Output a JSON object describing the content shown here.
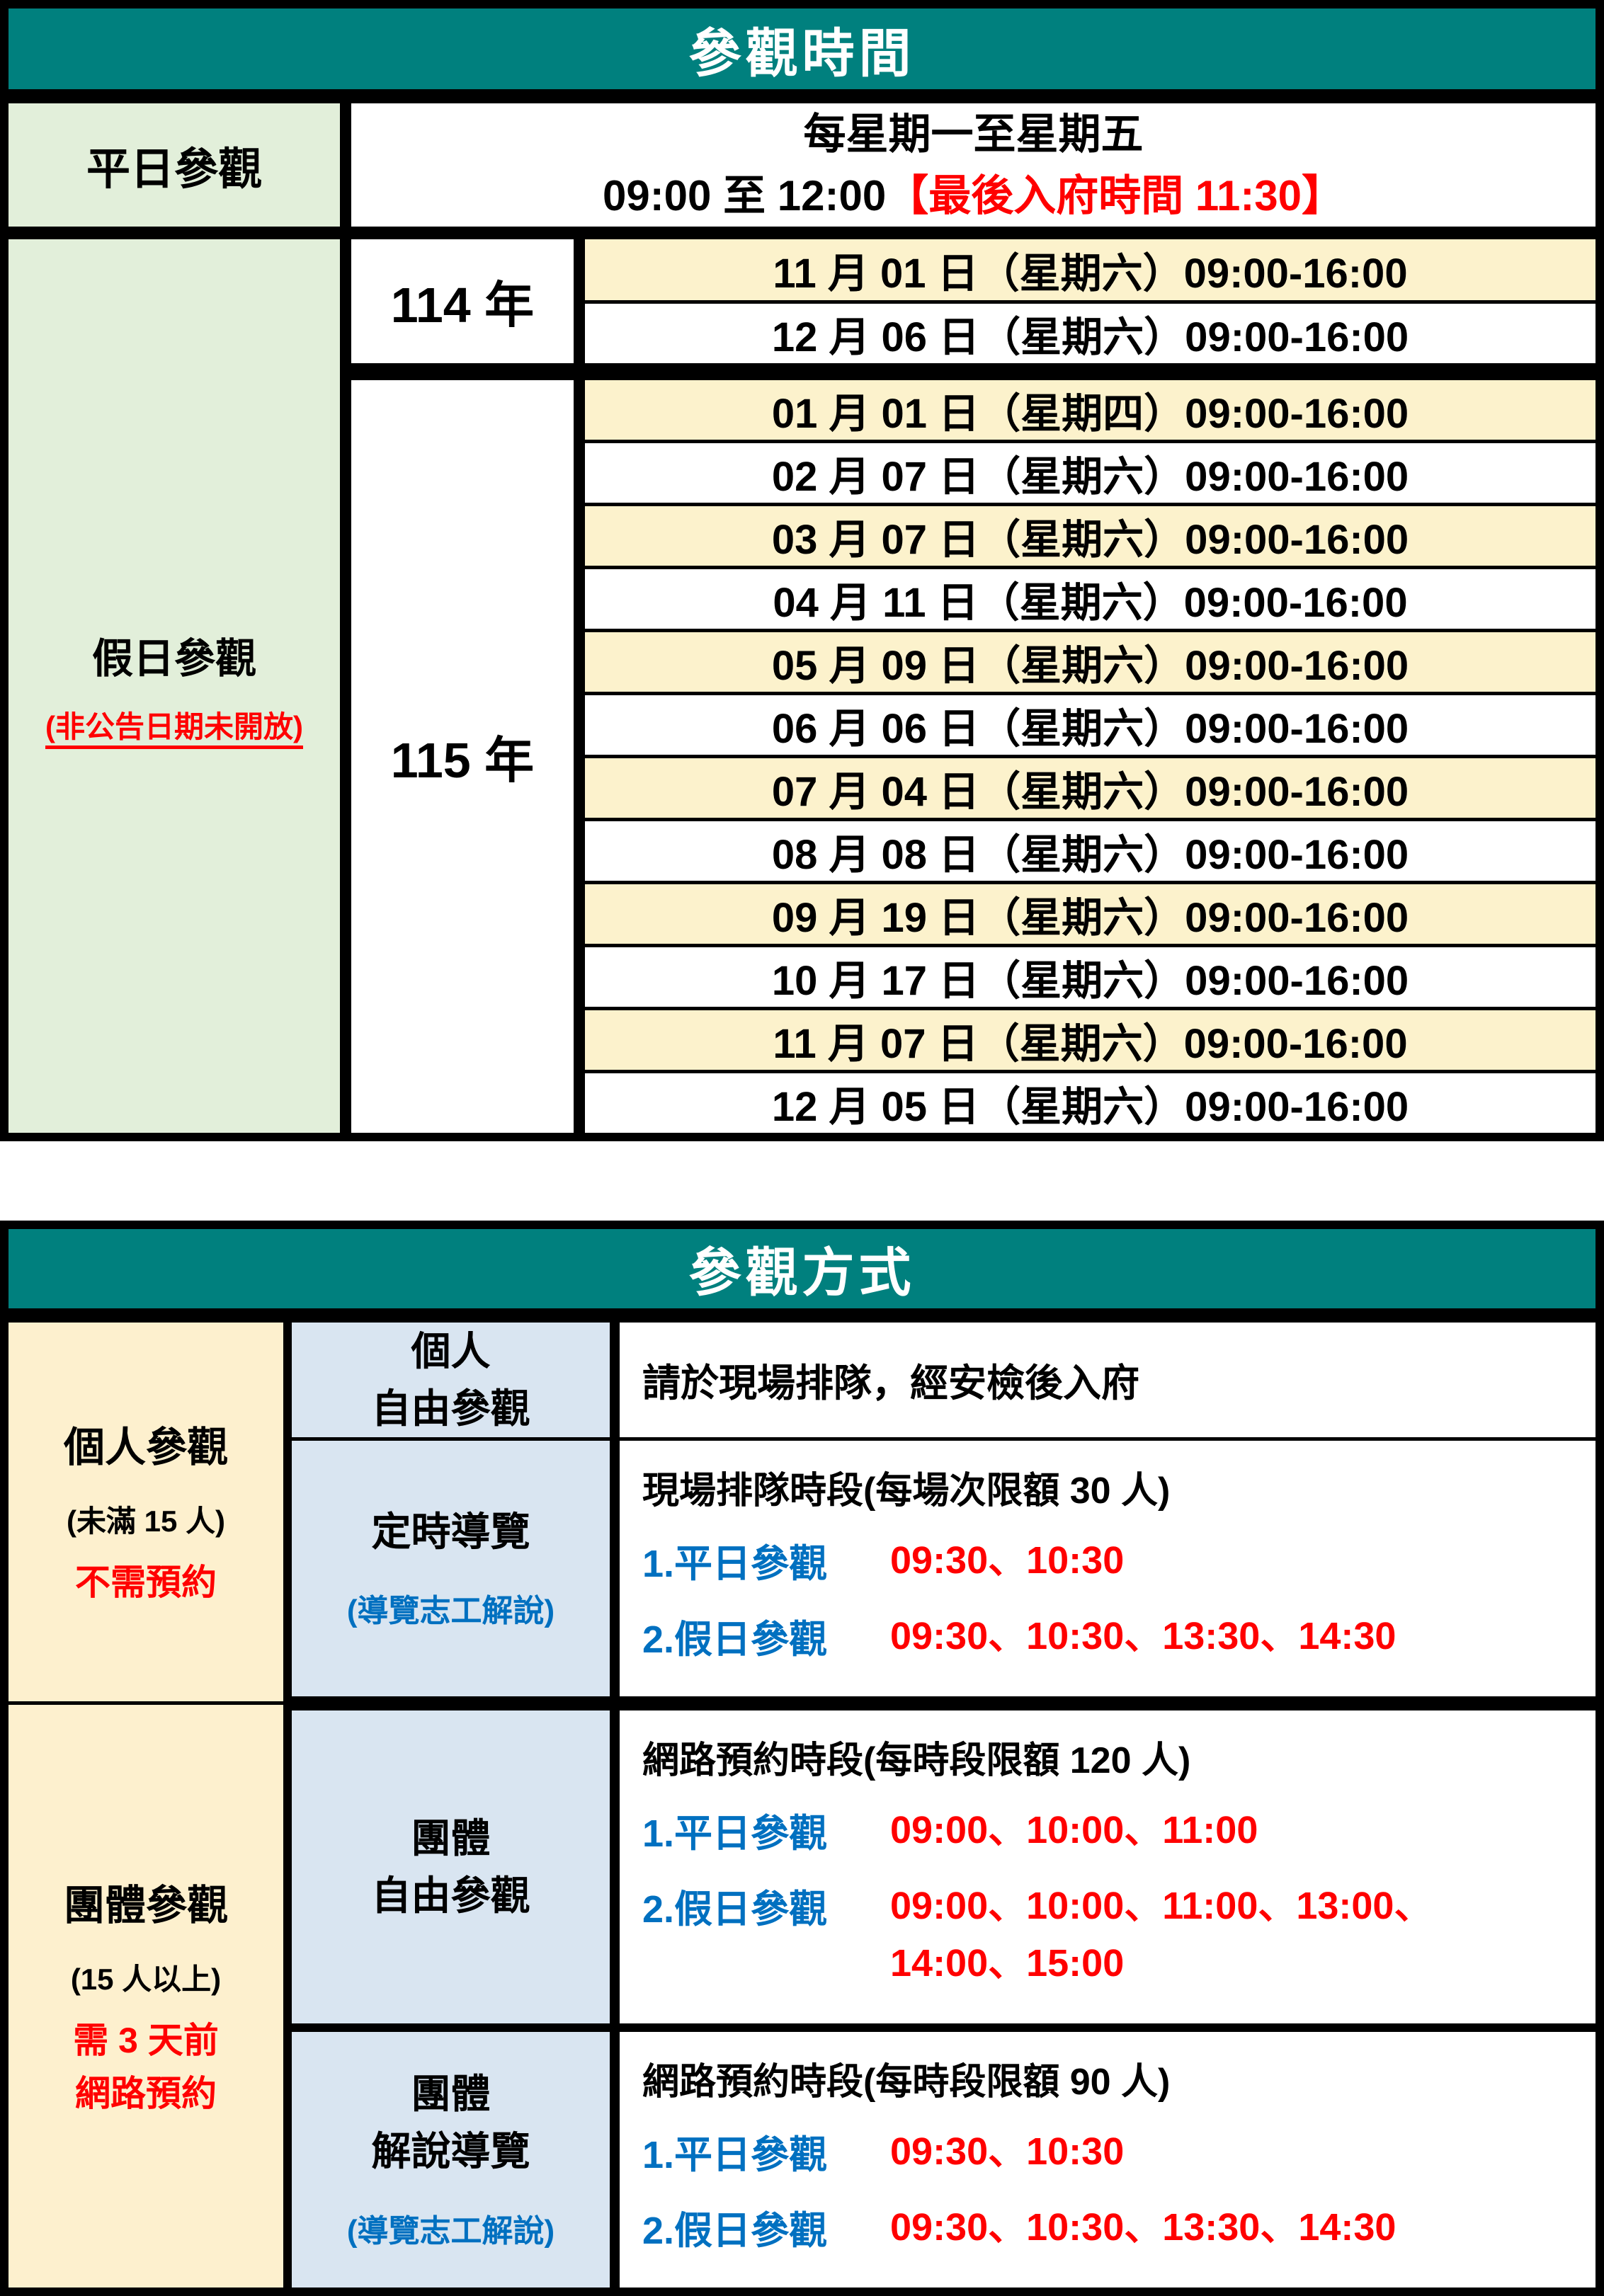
{
  "colors": {
    "header_teal": "#00807E",
    "label_green": "#E2EFDA",
    "date_highlight_yellow": "#FCF2CC",
    "category_cream": "#FDF0CE",
    "type_blue": "#D9E5F1",
    "alert_red": "#FF0000",
    "label_blue_text": "#0070C0"
  },
  "t1": {
    "title": "參觀時間",
    "weekday": {
      "label": "平日參觀",
      "line1": "每星期一至星期五",
      "time": "09:00 至 12:00",
      "note": "【最後入府時間 11:30】"
    },
    "holiday": {
      "label": "假日參觀",
      "sublabel": "(非公告日期未開放)",
      "groups": [
        {
          "year": "114 年",
          "dates": [
            "11 月 01 日（星期六）09:00-16:00",
            "12 月 06 日（星期六）09:00-16:00"
          ]
        },
        {
          "year": "115 年",
          "dates": [
            "01 月 01 日（星期四）09:00-16:00",
            "02 月 07 日（星期六）09:00-16:00",
            "03 月 07 日（星期六）09:00-16:00",
            "04 月 11 日（星期六）09:00-16:00",
            "05 月 09 日（星期六）09:00-16:00",
            "06 月 06 日（星期六）09:00-16:00",
            "07 月 04 日（星期六）09:00-16:00",
            "08 月 08 日（星期六）09:00-16:00",
            "09 月 19 日（星期六）09:00-16:00",
            "10 月 17 日（星期六）09:00-16:00",
            "11 月 07 日（星期六）09:00-16:00",
            "12 月 05 日（星期六）09:00-16:00"
          ]
        }
      ]
    }
  },
  "t2": {
    "title": "參觀方式",
    "individual": {
      "label": "個人參觀",
      "size": "(未滿 15 人)",
      "note": "不需預約",
      "free": {
        "type_line1": "個人",
        "type_line2": "自由參觀",
        "desc": "請於現場排隊，經安檢後入府"
      },
      "guided": {
        "type": "定時導覽",
        "type_sub": "(導覽志工解說)",
        "heading": "現場排隊時段(每場次限額 30 人)",
        "item1_label": "1.平日參觀",
        "item1_times": "09:30、10:30",
        "item2_label": "2.假日參觀",
        "item2_times": "09:30、10:30、13:30、14:30"
      }
    },
    "group": {
      "label": "團體參觀",
      "size": "(15 人以上)",
      "note_line1": "需 3 天前",
      "note_line2": "網路預約",
      "free": {
        "type_line1": "團體",
        "type_line2": "自由參觀",
        "heading": "網路預約時段(每時段限額 120 人)",
        "item1_label": "1.平日參觀",
        "item1_times": "09:00、10:00、11:00",
        "item2_label": "2.假日參觀",
        "item2_times": "09:00、10:00、11:00、13:00、",
        "item2_times_cont": "14:00、15:00"
      },
      "guided": {
        "type_line1": "團體",
        "type_line2": "解說導覽",
        "type_sub": "(導覽志工解說)",
        "heading": "網路預約時段(每時段限額 90 人)",
        "item1_label": "1.平日參觀",
        "item1_times": "09:30、10:30",
        "item2_label": "2.假日參觀",
        "item2_times": "09:30、10:30、13:30、14:30"
      }
    }
  }
}
